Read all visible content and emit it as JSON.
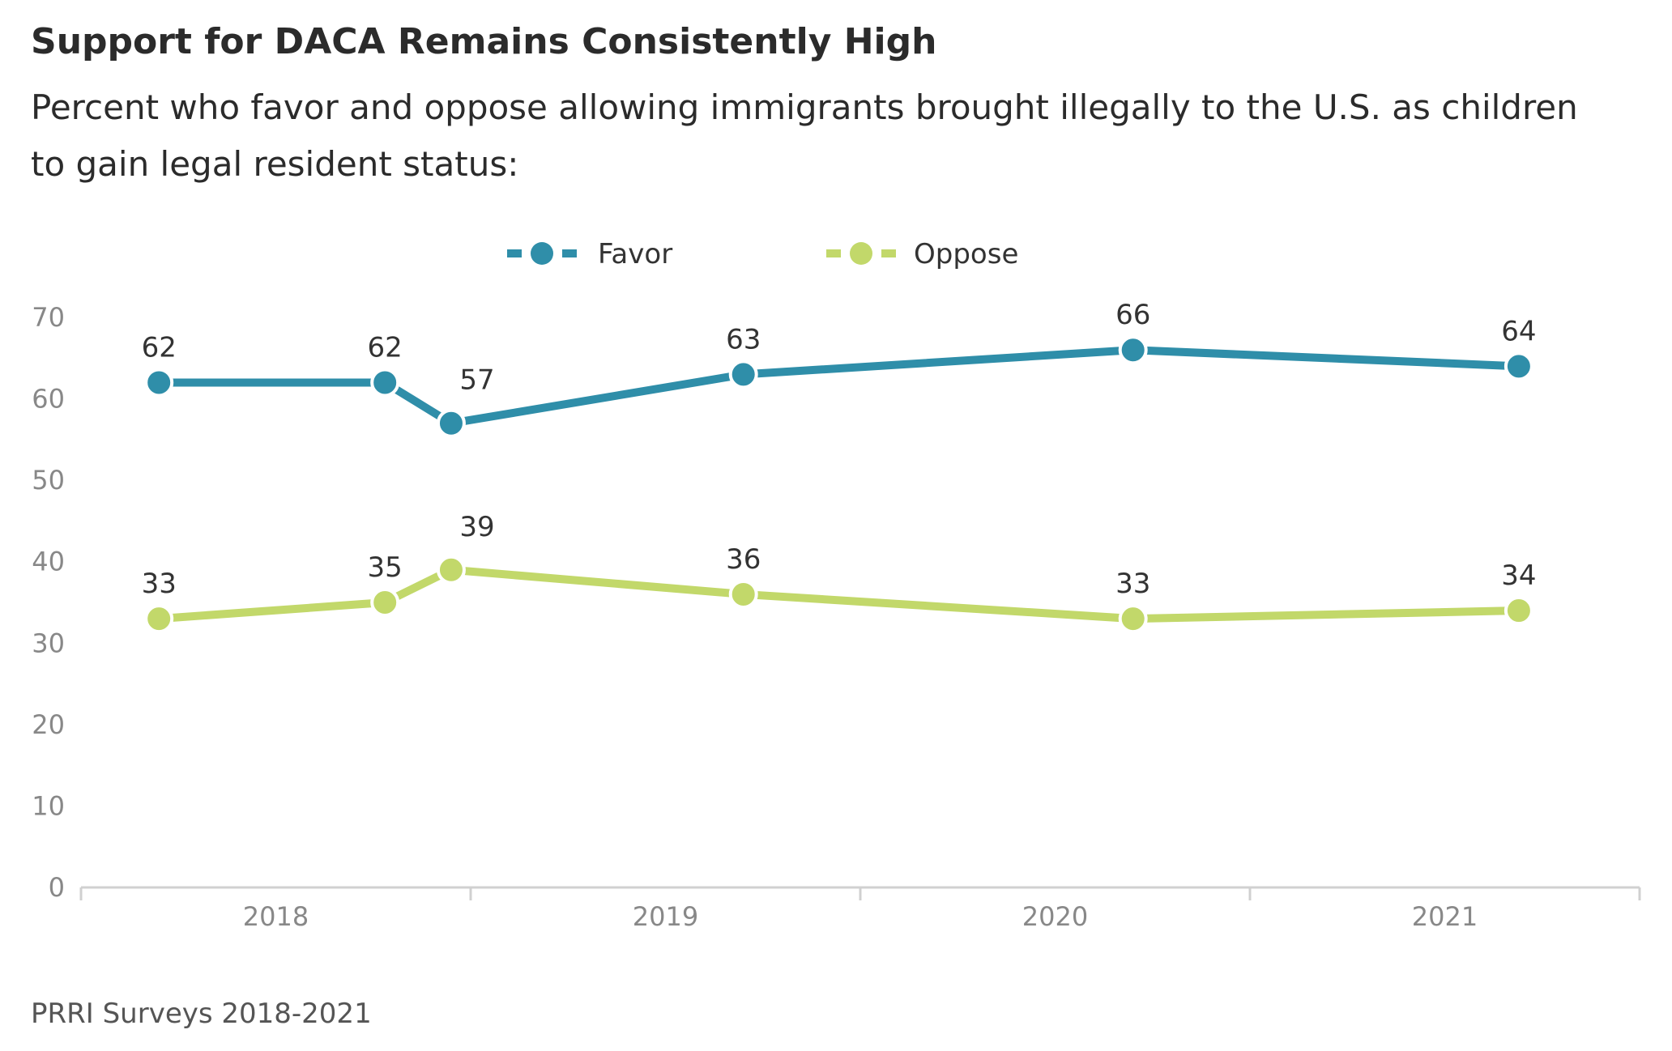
{
  "header": {
    "title": "Support for DACA Remains Consistently High",
    "subtitle": "Percent who favor and oppose allowing immigrants brought illegally to the U.S. as children to gain legal resident status:"
  },
  "footer": {
    "source": "PRRI Surveys 2018-2021"
  },
  "colors": {
    "favor": "#2f8ea9",
    "oppose": "#c2d86a",
    "axis": "#d0d0d0"
  },
  "chart_data": {
    "type": "line",
    "title": "Support for DACA Remains Consistently High",
    "subtitle": "Percent who favor and oppose allowing immigrants brought illegally to the U.S. as children to gain legal resident status:",
    "xlabel": "",
    "ylabel": "",
    "ylim": [
      0,
      70
    ],
    "yticks": [
      0,
      10,
      20,
      30,
      40,
      50,
      60,
      70
    ],
    "xlim": [
      2017.5,
      2021.5
    ],
    "xticks": [
      2018,
      2019,
      2020,
      2021
    ],
    "grid": false,
    "legend_position": "top-center",
    "series": [
      {
        "name": "Favor",
        "x": [
          2017.7,
          2018.28,
          2018.45,
          2019.2,
          2020.2,
          2021.19
        ],
        "values": [
          62,
          62,
          57,
          63,
          66,
          64
        ]
      },
      {
        "name": "Oppose",
        "x": [
          2017.7,
          2018.28,
          2018.45,
          2019.2,
          2020.2,
          2021.19
        ],
        "values": [
          33,
          35,
          39,
          36,
          33,
          34
        ]
      }
    ]
  }
}
